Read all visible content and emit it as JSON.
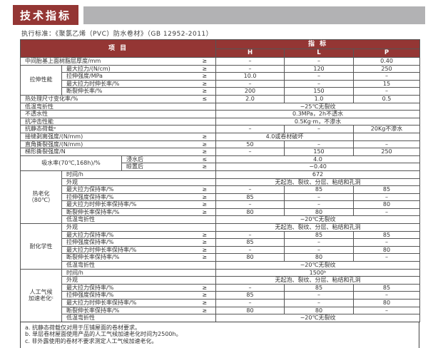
{
  "page": {
    "title": "技术指标",
    "standard_line": "执行标准：《聚氯乙烯（PVC）防水卷材》（GB 12952-2011）"
  },
  "colors": {
    "accent": "#943634",
    "bar_gray": "#b2b2b4"
  },
  "table": {
    "header": {
      "item": "项 目",
      "index": "指 标",
      "cols": [
        "H",
        "L",
        "P"
      ]
    },
    "rows": [
      {
        "ls": 3,
        "label": "中间胎基上面树脂层厚度/mm",
        "sym": "≥",
        "cells": [
          [
            "–"
          ],
          [
            "–"
          ],
          [
            "0.40"
          ]
        ]
      },
      {
        "group": {
          "label": "拉伸性能",
          "span": 4
        },
        "ls": 2,
        "label": "最大拉力/(N/cm)",
        "sym": "≥",
        "cells": [
          [
            "–"
          ],
          [
            "120"
          ],
          [
            "250"
          ]
        ]
      },
      {
        "ls": 2,
        "label": "拉伸强度/MPa",
        "sym": "≥",
        "cells": [
          [
            "10.0"
          ],
          [
            "–"
          ],
          [
            "–"
          ]
        ]
      },
      {
        "ls": 2,
        "label": "最大拉力时伸长率/%",
        "sym": "≥",
        "cells": [
          [
            "–"
          ],
          [
            "–"
          ],
          [
            "15"
          ]
        ]
      },
      {
        "ls": 2,
        "label": "断裂伸长率/%",
        "sym": "≥",
        "cells": [
          [
            "200"
          ],
          [
            "150"
          ],
          [
            "–"
          ]
        ]
      },
      {
        "ls": 3,
        "label": "热处理尺寸变化率/%",
        "sym": "≤",
        "cells": [
          [
            "2.0"
          ],
          [
            "1.0"
          ],
          [
            "0.5"
          ]
        ]
      },
      {
        "ls": 3,
        "label": "低温弯折性",
        "cells": [
          [
            "−25℃无裂纹",
            3
          ]
        ]
      },
      {
        "ls": 3,
        "label": "不透水性",
        "cells": [
          [
            "0.3MPa，2h不透水",
            3
          ]
        ]
      },
      {
        "ls": 3,
        "label": "抗冲击性能",
        "cells": [
          [
            "0.5Kg·m，不渗水",
            3
          ]
        ]
      },
      {
        "ls": 3,
        "label": "抗静态荷载ᵃ",
        "cells": [
          [
            "–"
          ],
          [
            "–"
          ],
          [
            "20Kg不渗水"
          ]
        ]
      },
      {
        "ls": 3,
        "label": "接缝剥离强度/(N/mm)",
        "sym": "≥",
        "cells": [
          [
            "4.0或卷材破坏",
            2
          ],
          [
            ""
          ]
        ]
      },
      {
        "ls": 3,
        "label": "直角撕裂强度/(N/mm)",
        "sym": "≥",
        "cells": [
          [
            "50"
          ],
          [
            "–"
          ],
          [
            "–"
          ]
        ]
      },
      {
        "ls": 3,
        "label": "梯形撕裂强度/N",
        "sym": "≥",
        "cells": [
          [
            "–"
          ],
          [
            "150"
          ],
          [
            "250"
          ]
        ]
      },
      {
        "group": {
          "label": "吸水率(70℃,168h)/%",
          "span": 2,
          "wide": true
        },
        "ls": 1,
        "label": "浸水后",
        "sym": "≤",
        "cells": [
          [
            "4.0",
            3
          ]
        ]
      },
      {
        "ls": 1,
        "label": "晾置后",
        "sym": "≥",
        "cells": [
          [
            "−0.40",
            3
          ]
        ]
      },
      {
        "group": {
          "label": "热老化\n（80℃）",
          "span": 7
        },
        "ls": 2,
        "label": "时间/h",
        "cells": [
          [
            "672",
            3
          ]
        ]
      },
      {
        "ls": 2,
        "label": "外观",
        "cells": [
          [
            "无起泡、裂纹、分层、粘结和孔洞",
            3
          ]
        ]
      },
      {
        "ls": 2,
        "label": "最大拉力保持率/%",
        "sym": "≥",
        "cells": [
          [
            "–"
          ],
          [
            "85"
          ],
          [
            "85"
          ]
        ]
      },
      {
        "ls": 2,
        "label": "拉伸强度保持率/%",
        "sym": "≥",
        "cells": [
          [
            "85"
          ],
          [
            "–"
          ],
          [
            "–"
          ]
        ]
      },
      {
        "ls": 2,
        "label": "最大拉力时伸长率保持率/%",
        "sym": "≥",
        "cells": [
          [
            "–"
          ],
          [
            "–"
          ],
          [
            "80"
          ]
        ]
      },
      {
        "ls": 2,
        "label": "断裂伸长率保持率/%",
        "sym": "≥",
        "cells": [
          [
            "80"
          ],
          [
            "80"
          ],
          [
            "–"
          ]
        ]
      },
      {
        "ls": 2,
        "label": "低温弯折性",
        "cells": [
          [
            "−20℃无裂纹",
            3
          ]
        ]
      },
      {
        "group": {
          "label": "耐化学性",
          "span": 6
        },
        "ls": 2,
        "label": "外观",
        "cells": [
          [
            "无起泡、裂纹、分层、粘结和孔洞",
            3
          ]
        ]
      },
      {
        "ls": 2,
        "label": "最大拉力保持率/%",
        "sym": "≥",
        "cells": [
          [
            "–"
          ],
          [
            "85"
          ],
          [
            "85"
          ]
        ]
      },
      {
        "ls": 2,
        "label": "拉伸强度保持率/%",
        "sym": "≥",
        "cells": [
          [
            "85"
          ],
          [
            "–"
          ],
          [
            "–"
          ]
        ]
      },
      {
        "ls": 2,
        "label": "最大拉力时伸长率保持率/%",
        "sym": "≥",
        "cells": [
          [
            "–"
          ],
          [
            "–"
          ],
          [
            "80"
          ]
        ]
      },
      {
        "ls": 2,
        "label": "断裂伸长率保持率/%",
        "sym": "≥",
        "cells": [
          [
            "80"
          ],
          [
            "80"
          ],
          [
            "–"
          ]
        ]
      },
      {
        "ls": 2,
        "label": "低温弯折性",
        "cells": [
          [
            "−20℃无裂纹",
            3
          ]
        ]
      },
      {
        "group": {
          "label": "人工气候\n加速老化ᶜ",
          "span": 7
        },
        "ls": 2,
        "label": "时间/h",
        "cells": [
          [
            "1500ᵇ",
            3
          ]
        ]
      },
      {
        "ls": 2,
        "label": "外观",
        "cells": [
          [
            "无起泡、裂纹、分层、粘结和孔洞",
            3
          ]
        ]
      },
      {
        "ls": 2,
        "label": "最大拉力保持率/%",
        "sym": "≥",
        "cells": [
          [
            "–"
          ],
          [
            "85"
          ],
          [
            "85"
          ]
        ]
      },
      {
        "ls": 2,
        "label": "拉伸强度保持率/%",
        "sym": "≥",
        "cells": [
          [
            "85"
          ],
          [
            "–"
          ],
          [
            "–"
          ]
        ]
      },
      {
        "ls": 2,
        "label": "最大拉力时伸长率保持率/%",
        "sym": "≥",
        "cells": [
          [
            "–"
          ],
          [
            "–"
          ],
          [
            "80"
          ]
        ]
      },
      {
        "ls": 2,
        "label": "断裂伸长率保持率/%",
        "sym": "≥",
        "cells": [
          [
            "80"
          ],
          [
            "80"
          ],
          [
            "–"
          ]
        ]
      },
      {
        "ls": 2,
        "label": "低温弯折性",
        "cells": [
          [
            "−20℃无裂纹",
            3
          ]
        ]
      }
    ],
    "footnotes": [
      "a. 抗静态荷载仅对用于压铺屋面的卷材要求。",
      "b. 单层卷材屋面使用产品的人工气候加速老化时间为2500h。",
      "c. 非外露使用的卷材不要求测定人工气候加速老化。"
    ]
  }
}
